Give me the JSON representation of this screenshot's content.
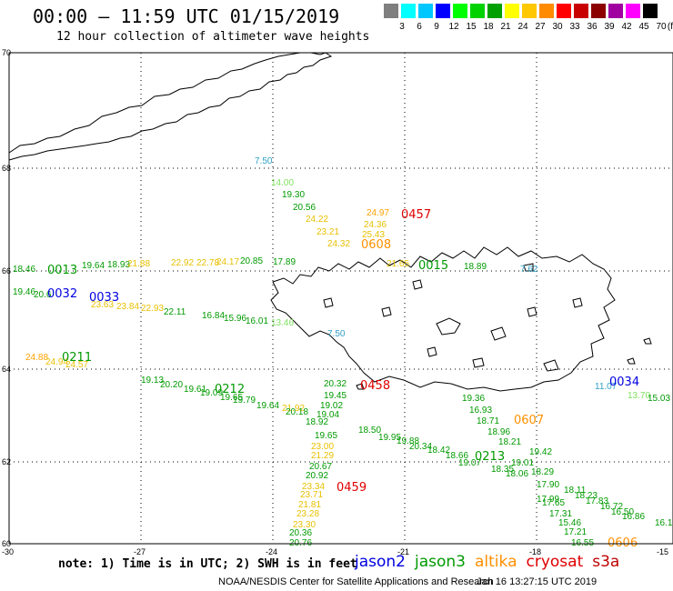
{
  "header": {
    "title": "00:00 – 11:59 UTC 01/15/2019",
    "subtitle": "12 hour collection of altimeter wave heights"
  },
  "legend": {
    "unit": "(ft)",
    "colors": [
      "#7f7f7f",
      "#00ffff",
      "#00c8ff",
      "#0000ff",
      "#00ff00",
      "#00d200",
      "#00a000",
      "#ffff00",
      "#ffc800",
      "#ff8c00",
      "#ff0000",
      "#c80000",
      "#8c0000",
      "#a000a0",
      "#ff00ff",
      "#000000"
    ],
    "labels": [
      "3",
      "6",
      "9",
      "12",
      "15",
      "18",
      "21",
      "24",
      "27",
      "30",
      "33",
      "36",
      "39",
      "42",
      "45",
      "70"
    ]
  },
  "map": {
    "lat_labels": [
      "70",
      "68",
      "66",
      "64",
      "62",
      "60"
    ],
    "lon_labels": [
      "-30",
      "-27",
      "-24",
      "-21",
      "-18",
      "-15"
    ],
    "track_labels": [
      {
        "text": "0457",
        "color": "#e00000"
      },
      {
        "text": "0608",
        "color": "#ff9000"
      },
      {
        "text": "0015",
        "color": "#009a00"
      },
      {
        "text": "0013",
        "color": "#009a00"
      },
      {
        "text": "0032",
        "color": "#0000e0"
      },
      {
        "text": "0033",
        "color": "#0000e0"
      },
      {
        "text": "0211",
        "color": "#009a00"
      },
      {
        "text": "0212",
        "color": "#009a00"
      },
      {
        "text": "0458",
        "color": "#e00000"
      },
      {
        "text": "0034",
        "color": "#0000e0"
      },
      {
        "text": "0607",
        "color": "#ff9000"
      },
      {
        "text": "0213",
        "color": "#009a00"
      },
      {
        "text": "0459",
        "color": "#e00000"
      },
      {
        "text": "0606",
        "color": "#ff9000"
      }
    ],
    "values": [
      {
        "text": "7.50",
        "color": "#30a0c8"
      },
      {
        "text": "14.00",
        "color": "#80e060"
      },
      {
        "text": "19.30",
        "color": "#009a00"
      },
      {
        "text": "20.56",
        "color": "#009a00"
      },
      {
        "text": "24.97",
        "color": "#ffa000"
      },
      {
        "text": "24.22",
        "color": "#e8c000"
      },
      {
        "text": "24.36",
        "color": "#e8c000"
      },
      {
        "text": "23.21",
        "color": "#e8c000"
      },
      {
        "text": "25.43",
        "color": "#e8c000"
      },
      {
        "text": "24.32",
        "color": "#e8c000"
      },
      {
        "text": "21.65",
        "color": "#e8c000"
      },
      {
        "text": "18.89",
        "color": "#009a00"
      },
      {
        "text": "7.62",
        "color": "#30a0c8"
      },
      {
        "text": "18.46",
        "color": "#009a00"
      },
      {
        "text": "19.64",
        "color": "#009a00"
      },
      {
        "text": "18.93",
        "color": "#009a00"
      },
      {
        "text": "21.88",
        "color": "#e8c000"
      },
      {
        "text": "22.92",
        "color": "#e8c000"
      },
      {
        "text": "22.78",
        "color": "#e8c000"
      },
      {
        "text": "24.17",
        "color": "#e8c000"
      },
      {
        "text": "20.85",
        "color": "#009a00"
      },
      {
        "text": "17.89",
        "color": "#009a00"
      },
      {
        "text": "19.46",
        "color": "#009a00"
      },
      {
        "text": "20.6",
        "color": "#009a00"
      },
      {
        "text": "23.63",
        "color": "#e8c000"
      },
      {
        "text": "23.84",
        "color": "#e8c000"
      },
      {
        "text": "22.93",
        "color": "#e8c000"
      },
      {
        "text": "22.11",
        "color": "#009a00"
      },
      {
        "text": "16.84",
        "color": "#009a00"
      },
      {
        "text": "15.96",
        "color": "#009a00"
      },
      {
        "text": "16.01",
        "color": "#009a00"
      },
      {
        "text": "13.46",
        "color": "#80e060"
      },
      {
        "text": "7.50",
        "color": "#30a0c8"
      },
      {
        "text": "24.88",
        "color": "#ffa000"
      },
      {
        "text": "24.94",
        "color": "#e8c000"
      },
      {
        "text": "24.57",
        "color": "#e8c000"
      },
      {
        "text": "19.13",
        "color": "#009a00"
      },
      {
        "text": "20.20",
        "color": "#009a00"
      },
      {
        "text": "19.61",
        "color": "#009a00"
      },
      {
        "text": "19.09",
        "color": "#009a00"
      },
      {
        "text": "19.65",
        "color": "#009a00"
      },
      {
        "text": "19.79",
        "color": "#009a00"
      },
      {
        "text": "19.64",
        "color": "#009a00"
      },
      {
        "text": "21.92",
        "color": "#e8c000"
      },
      {
        "text": "20.18",
        "color": "#009a00"
      },
      {
        "text": "20.32",
        "color": "#009a00"
      },
      {
        "text": "19.45",
        "color": "#009a00"
      },
      {
        "text": "19.02",
        "color": "#009a00"
      },
      {
        "text": "19.04",
        "color": "#009a00"
      },
      {
        "text": "18.92",
        "color": "#009a00"
      },
      {
        "text": "19.65",
        "color": "#009a00"
      },
      {
        "text": "18.50",
        "color": "#009a00"
      },
      {
        "text": "19.95",
        "color": "#009a00"
      },
      {
        "text": "19.88",
        "color": "#009a00"
      },
      {
        "text": "20.34",
        "color": "#009a00"
      },
      {
        "text": "18.42",
        "color": "#009a00"
      },
      {
        "text": "23.00",
        "color": "#e8c000"
      },
      {
        "text": "21.29",
        "color": "#e8c000"
      },
      {
        "text": "20.67",
        "color": "#009a00"
      },
      {
        "text": "20.92",
        "color": "#009a00"
      },
      {
        "text": "23.34",
        "color": "#e8c000"
      },
      {
        "text": "23.71",
        "color": "#e8c000"
      },
      {
        "text": "21.81",
        "color": "#e8c000"
      },
      {
        "text": "23.28",
        "color": "#e8c000"
      },
      {
        "text": "23.30",
        "color": "#e8c000"
      },
      {
        "text": "20.36",
        "color": "#009a00"
      },
      {
        "text": "20.76",
        "color": "#009a00"
      },
      {
        "text": "19.36",
        "color": "#009a00"
      },
      {
        "text": "16.93",
        "color": "#009a00"
      },
      {
        "text": "18.71",
        "color": "#009a00"
      },
      {
        "text": "18.96",
        "color": "#009a00"
      },
      {
        "text": "18.21",
        "color": "#009a00"
      },
      {
        "text": "19.42",
        "color": "#009a00"
      },
      {
        "text": "19.01",
        "color": "#009a00"
      },
      {
        "text": "18.66",
        "color": "#009a00"
      },
      {
        "text": "19.07",
        "color": "#009a00"
      },
      {
        "text": "18.35",
        "color": "#009a00"
      },
      {
        "text": "18.29",
        "color": "#009a00"
      },
      {
        "text": "18.06",
        "color": "#009a00"
      },
      {
        "text": "17.90",
        "color": "#009a00"
      },
      {
        "text": "18.11",
        "color": "#009a00"
      },
      {
        "text": "17.99",
        "color": "#009a00"
      },
      {
        "text": "18.23",
        "color": "#009a00"
      },
      {
        "text": "17.65",
        "color": "#009a00"
      },
      {
        "text": "17.83",
        "color": "#009a00"
      },
      {
        "text": "17.31",
        "color": "#009a00"
      },
      {
        "text": "16.72",
        "color": "#009a00"
      },
      {
        "text": "15.46",
        "color": "#009a00"
      },
      {
        "text": "16.50",
        "color": "#009a00"
      },
      {
        "text": "17.21",
        "color": "#009a00"
      },
      {
        "text": "16.86",
        "color": "#009a00"
      },
      {
        "text": "16.55",
        "color": "#009a00"
      },
      {
        "text": "16.1",
        "color": "#009a00"
      },
      {
        "text": "11.07",
        "color": "#30a0c8"
      },
      {
        "text": "13.70",
        "color": "#80e060"
      },
      {
        "text": "15.03",
        "color": "#009a00"
      }
    ]
  },
  "note": "note: 1) Time is in UTC; 2) SWH is in feet",
  "satellites": [
    {
      "name": "jason2",
      "color": "#0000e0"
    },
    {
      "name": "jason3",
      "color": "#009a00"
    },
    {
      "name": "altika",
      "color": "#ff9000"
    },
    {
      "name": "cryosat",
      "color": "#e00000"
    },
    {
      "name": "s3a",
      "color": "#c00000"
    }
  ],
  "footer": {
    "left": "NOAA/NESDIS Center for Satellite Applications and Research",
    "right": "Jan 16 13:27:15 UTC 2019"
  }
}
